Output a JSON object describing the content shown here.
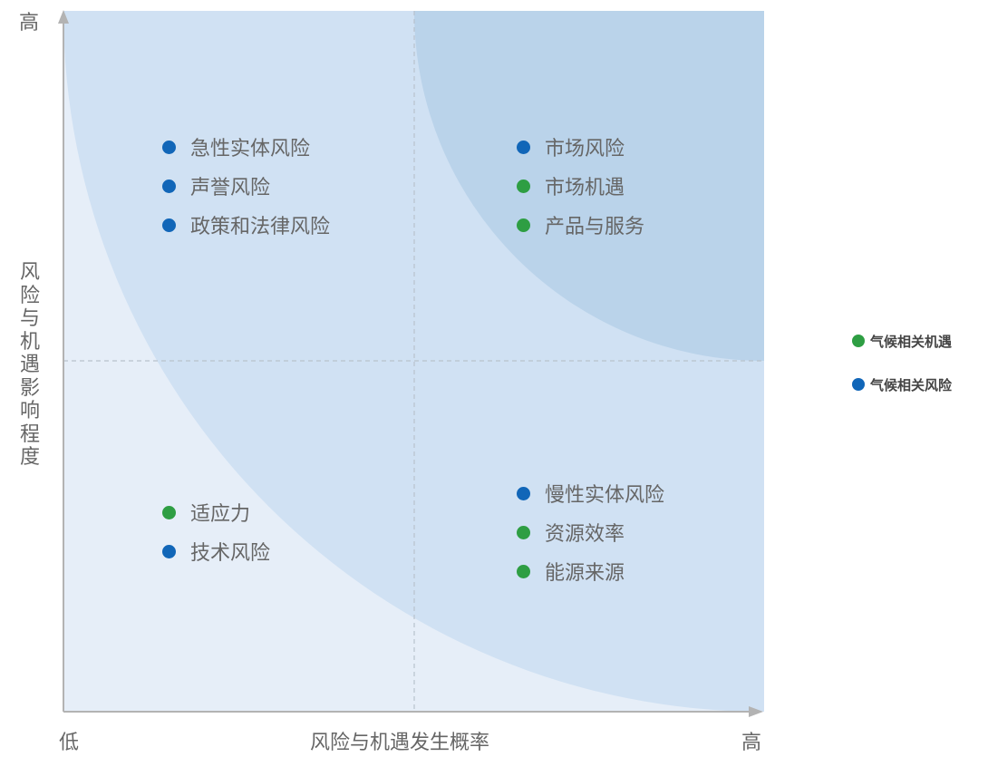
{
  "axes": {
    "x_label": "风险与机遇发生概率",
    "y_label": "风险与机遇影响程度",
    "x_low": "低",
    "x_high": "高",
    "y_high": "高"
  },
  "colors": {
    "opportunity": "#2e9e43",
    "risk": "#1166b8",
    "zone_light": "#e6eef8",
    "zone_mid": "#d0e1f3",
    "zone_dark": "#bad3ea"
  },
  "quadrants": {
    "top_left": [
      {
        "label": "急性实体风险",
        "kind": "risk"
      },
      {
        "label": "声誉风险",
        "kind": "risk"
      },
      {
        "label": "政策和法律风险",
        "kind": "risk"
      }
    ],
    "top_right": [
      {
        "label": "市场风险",
        "kind": "risk"
      },
      {
        "label": "市场机遇",
        "kind": "opportunity"
      },
      {
        "label": "产品与服务",
        "kind": "opportunity"
      }
    ],
    "bottom_left": [
      {
        "label": "适应力",
        "kind": "opportunity"
      },
      {
        "label": "技术风险",
        "kind": "risk"
      }
    ],
    "bottom_right": [
      {
        "label": "慢性实体风险",
        "kind": "risk"
      },
      {
        "label": "资源效率",
        "kind": "opportunity"
      },
      {
        "label": "能源来源",
        "kind": "opportunity"
      }
    ]
  },
  "legend": [
    {
      "label": "气候相关机遇",
      "kind": "opportunity"
    },
    {
      "label": "气候相关风险",
      "kind": "risk"
    }
  ]
}
